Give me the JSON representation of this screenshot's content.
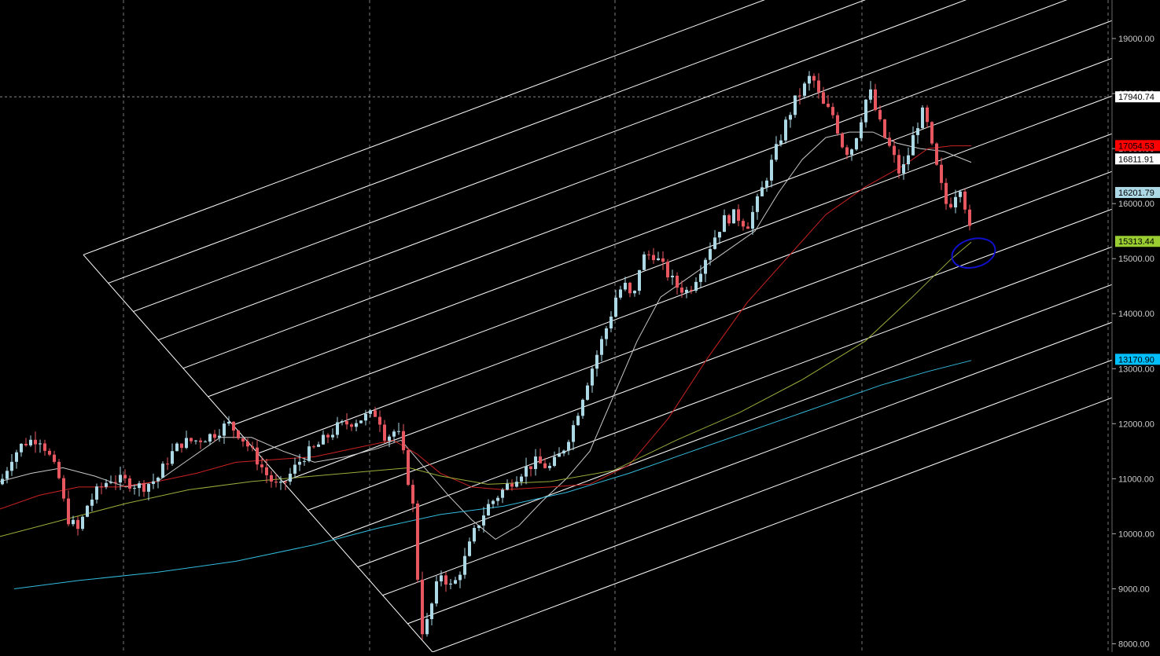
{
  "chart_data": {
    "type": "candlestick",
    "title": "",
    "xlabel": "",
    "ylabel": "",
    "grid": true,
    "ylim": [
      7850,
      19700
    ],
    "y_ticks": [
      "19000.00",
      "18000.00",
      "17000.00",
      "16000.00",
      "15000.00",
      "14000.00",
      "13000.00",
      "12000.00",
      "11000.00",
      "10000.00",
      "9000.00",
      "8000.00"
    ],
    "y_tick_values": [
      19000,
      18000,
      17000,
      16000,
      15000,
      14000,
      13000,
      12000,
      11000,
      10000,
      9000,
      8000
    ],
    "price_labels": [
      {
        "text": "17940.74",
        "value": 17940.74,
        "color": "#FFFFFF",
        "text_color": "#000000"
      },
      {
        "text": "17054.53",
        "value": 17054.53,
        "color": "#FF0000",
        "text_color": "#000000"
      },
      {
        "text": "16811.91",
        "value": 16811.91,
        "color": "#FFFFFF",
        "text_color": "#000000"
      },
      {
        "text": "16201.79",
        "value": 16201.79,
        "color": "#ADD8E6",
        "text_color": "#000000"
      },
      {
        "text": "15313.44",
        "value": 15313.44,
        "color": "#9ACD32",
        "text_color": "#000000"
      },
      {
        "text": "13170.90",
        "value": 13170.9,
        "color": "#00BFFF",
        "text_color": "#000000"
      }
    ],
    "colors": {
      "background": "#000000",
      "up_candle": "#ADD8E6",
      "down_candle": "#E8575F",
      "fan_lines": "#FFFFFF",
      "ma_short": "#C8C8C8",
      "ma_mid": "#CC2222",
      "ma_long": "#9AAD3A",
      "ma_longest": "#33BBDD",
      "annotation_circle": "#1010CC"
    },
    "crosshair_value": 17940.74,
    "price_path": [
      [
        0,
        10900
      ],
      [
        15,
        11400
      ],
      [
        30,
        11650
      ],
      [
        50,
        11750
      ],
      [
        60,
        11500
      ],
      [
        75,
        11000
      ],
      [
        85,
        10300
      ],
      [
        100,
        10050
      ],
      [
        110,
        10500
      ],
      [
        125,
        10800
      ],
      [
        140,
        11000
      ],
      [
        160,
        10950
      ],
      [
        180,
        10850
      ],
      [
        200,
        11000
      ],
      [
        215,
        11400
      ],
      [
        230,
        11650
      ],
      [
        250,
        11700
      ],
      [
        270,
        11800
      ],
      [
        290,
        12000
      ],
      [
        305,
        11800
      ],
      [
        320,
        11500
      ],
      [
        340,
        11050
      ],
      [
        355,
        10800
      ],
      [
        370,
        11100
      ],
      [
        385,
        11400
      ],
      [
        400,
        11550
      ],
      [
        415,
        11750
      ],
      [
        430,
        11950
      ],
      [
        450,
        12050
      ],
      [
        470,
        12150
      ],
      [
        480,
        12200
      ],
      [
        490,
        11750
      ],
      [
        505,
        11900
      ],
      [
        515,
        11300
      ],
      [
        525,
        10500
      ],
      [
        532,
        9000
      ],
      [
        538,
        8100
      ],
      [
        545,
        8500
      ],
      [
        560,
        9300
      ],
      [
        575,
        9000
      ],
      [
        590,
        9500
      ],
      [
        605,
        10100
      ],
      [
        620,
        10500
      ],
      [
        640,
        10800
      ],
      [
        660,
        11100
      ],
      [
        680,
        11300
      ],
      [
        700,
        11200
      ],
      [
        715,
        11500
      ],
      [
        730,
        12000
      ],
      [
        745,
        12700
      ],
      [
        760,
        13300
      ],
      [
        775,
        13900
      ],
      [
        785,
        14400
      ],
      [
        795,
        14500
      ],
      [
        805,
        14200
      ],
      [
        815,
        15000
      ],
      [
        830,
        15100
      ],
      [
        845,
        14800
      ],
      [
        860,
        14500
      ],
      [
        875,
        14400
      ],
      [
        890,
        14800
      ],
      [
        905,
        15300
      ],
      [
        920,
        15700
      ],
      [
        935,
        15800
      ],
      [
        950,
        15600
      ],
      [
        965,
        16100
      ],
      [
        980,
        16700
      ],
      [
        990,
        17100
      ],
      [
        1000,
        17500
      ],
      [
        1012,
        17900
      ],
      [
        1022,
        18100
      ],
      [
        1032,
        18350
      ],
      [
        1045,
        17800
      ],
      [
        1060,
        17600
      ],
      [
        1070,
        17100
      ],
      [
        1080,
        16900
      ],
      [
        1090,
        17300
      ],
      [
        1105,
        18100
      ],
      [
        1115,
        17600
      ],
      [
        1125,
        17200
      ],
      [
        1135,
        16900
      ],
      [
        1145,
        16500
      ],
      [
        1155,
        16900
      ],
      [
        1165,
        17400
      ],
      [
        1175,
        17700
      ],
      [
        1185,
        17000
      ],
      [
        1195,
        16400
      ],
      [
        1205,
        15900
      ],
      [
        1215,
        16200
      ],
      [
        1222,
        16350
      ],
      [
        1228,
        15900
      ],
      [
        1235,
        15350
      ]
    ],
    "moving_averages": [
      {
        "color_key": "ma_short",
        "points": [
          [
            0,
            10950
          ],
          [
            40,
            11100
          ],
          [
            80,
            11200
          ],
          [
            120,
            11050
          ],
          [
            160,
            10850
          ],
          [
            200,
            10950
          ],
          [
            240,
            11350
          ],
          [
            280,
            11750
          ],
          [
            320,
            11750
          ],
          [
            360,
            11500
          ],
          [
            400,
            11300
          ],
          [
            440,
            11400
          ],
          [
            480,
            11550
          ],
          [
            510,
            11700
          ],
          [
            540,
            11200
          ],
          [
            570,
            10700
          ],
          [
            600,
            10250
          ],
          [
            630,
            9900
          ],
          [
            660,
            10150
          ],
          [
            690,
            10600
          ],
          [
            720,
            11000
          ],
          [
            750,
            11500
          ],
          [
            780,
            12500
          ],
          [
            810,
            13500
          ],
          [
            840,
            14300
          ],
          [
            880,
            14700
          ],
          [
            920,
            15100
          ],
          [
            960,
            15500
          ],
          [
            990,
            16200
          ],
          [
            1020,
            16800
          ],
          [
            1050,
            17200
          ],
          [
            1080,
            17300
          ],
          [
            1110,
            17300
          ],
          [
            1140,
            17100
          ],
          [
            1170,
            17000
          ],
          [
            1200,
            16950
          ],
          [
            1235,
            16750
          ]
        ]
      },
      {
        "color_key": "ma_mid",
        "points": [
          [
            0,
            10450
          ],
          [
            50,
            10700
          ],
          [
            100,
            10850
          ],
          [
            150,
            10850
          ],
          [
            200,
            10950
          ],
          [
            250,
            11100
          ],
          [
            300,
            11300
          ],
          [
            350,
            11350
          ],
          [
            400,
            11400
          ],
          [
            450,
            11550
          ],
          [
            500,
            11700
          ],
          [
            530,
            11450
          ],
          [
            560,
            11100
          ],
          [
            600,
            10850
          ],
          [
            640,
            10800
          ],
          [
            700,
            10850
          ],
          [
            750,
            10900
          ],
          [
            800,
            11250
          ],
          [
            850,
            12100
          ],
          [
            900,
            13200
          ],
          [
            950,
            14200
          ],
          [
            1000,
            15000
          ],
          [
            1050,
            15800
          ],
          [
            1100,
            16300
          ],
          [
            1150,
            16700
          ],
          [
            1180,
            17000
          ],
          [
            1210,
            17050
          ],
          [
            1235,
            17050
          ]
        ]
      },
      {
        "color_key": "ma_long",
        "points": [
          [
            0,
            9950
          ],
          [
            80,
            10250
          ],
          [
            160,
            10550
          ],
          [
            240,
            10800
          ],
          [
            320,
            10950
          ],
          [
            400,
            11050
          ],
          [
            480,
            11150
          ],
          [
            520,
            11200
          ],
          [
            560,
            11050
          ],
          [
            620,
            10900
          ],
          [
            700,
            10950
          ],
          [
            780,
            11150
          ],
          [
            860,
            11700
          ],
          [
            940,
            12200
          ],
          [
            1020,
            12800
          ],
          [
            1100,
            13500
          ],
          [
            1160,
            14300
          ],
          [
            1210,
            15000
          ],
          [
            1235,
            15300
          ]
        ]
      },
      {
        "color_key": "ma_longest",
        "points": [
          [
            18,
            9000
          ],
          [
            100,
            9150
          ],
          [
            200,
            9300
          ],
          [
            300,
            9500
          ],
          [
            400,
            9800
          ],
          [
            480,
            10100
          ],
          [
            560,
            10350
          ],
          [
            640,
            10500
          ],
          [
            720,
            10750
          ],
          [
            800,
            11100
          ],
          [
            880,
            11500
          ],
          [
            960,
            11900
          ],
          [
            1040,
            12300
          ],
          [
            1120,
            12700
          ],
          [
            1180,
            12950
          ],
          [
            1235,
            13150
          ]
        ]
      }
    ],
    "fan": {
      "base_line": [
        [
          106,
          15070
        ],
        [
          550,
          7850
        ]
      ],
      "line_count": 15,
      "step_start": 0.0,
      "slope_per_px": 5.35
    },
    "annotation": {
      "shape": "circle",
      "center_x": 1238,
      "center_value": 15100
    }
  }
}
